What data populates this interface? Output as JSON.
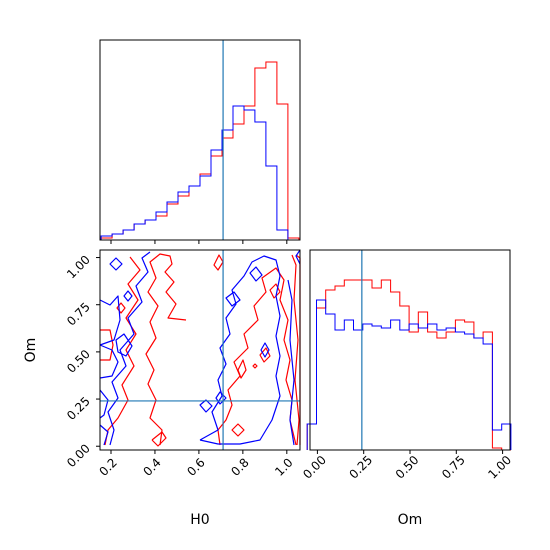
{
  "colors": {
    "series_a": "#ff0000",
    "series_b": "#0000ff",
    "truth": "#1f77b4",
    "axes": "#000000"
  },
  "chart_data": [
    {
      "type": "histogram",
      "panel": "H0 marginal",
      "x": [
        0.18,
        0.23,
        0.28,
        0.33,
        0.38,
        0.43,
        0.48,
        0.53,
        0.58,
        0.63,
        0.68,
        0.73,
        0.78,
        0.83,
        0.88,
        0.93,
        0.98,
        1.03
      ],
      "xlim": [
        0.15,
        1.06
      ],
      "ylim": [
        0,
        1.0
      ],
      "series": [
        {
          "values": [
            0.01,
            0.03,
            0.05,
            0.08,
            0.1,
            0.12,
            0.18,
            0.22,
            0.27,
            0.33,
            0.42,
            0.51,
            0.58,
            0.67,
            0.86,
            0.89,
            0.68,
            0.01
          ]
        },
        {
          "values": [
            0.02,
            0.03,
            0.05,
            0.08,
            0.1,
            0.14,
            0.19,
            0.24,
            0.27,
            0.32,
            0.45,
            0.55,
            0.67,
            0.65,
            0.59,
            0.37,
            0.05,
            0.0
          ]
        }
      ],
      "truth_x": 0.71,
      "xticks": [
        "0.2",
        "0.4",
        "0.6",
        "0.8",
        "1.0"
      ]
    },
    {
      "type": "contour",
      "panel": "H0 vs Om",
      "xlabel": "H0",
      "ylabel": "Om",
      "xlim": [
        0.15,
        1.06
      ],
      "ylim": [
        -0.02,
        1.04
      ],
      "xticks": [
        "0.2",
        "0.4",
        "0.6",
        "0.8",
        "1.0"
      ],
      "yticks": [
        "0.00",
        "0.25",
        "0.50",
        "0.75",
        "1.00"
      ],
      "truth": [
        0.71,
        0.24
      ]
    },
    {
      "type": "histogram",
      "panel": "Om marginal",
      "xlabel": "Om",
      "x": [
        -0.03,
        0.02,
        0.07,
        0.12,
        0.17,
        0.22,
        0.27,
        0.32,
        0.37,
        0.42,
        0.47,
        0.52,
        0.57,
        0.62,
        0.67,
        0.72,
        0.77,
        0.82,
        0.87,
        0.92,
        0.97,
        1.02
      ],
      "xlim": [
        -0.04,
        1.04
      ],
      "ylim": [
        0,
        1.0
      ],
      "series": [
        {
          "values": [
            0.13,
            0.71,
            0.8,
            0.82,
            0.85,
            0.85,
            0.85,
            0.81,
            0.85,
            0.79,
            0.72,
            0.59,
            0.69,
            0.59,
            0.56,
            0.59,
            0.65,
            0.64,
            0.56,
            0.59,
            0.01,
            0.0
          ]
        },
        {
          "values": [
            0.13,
            0.75,
            0.68,
            0.6,
            0.65,
            0.6,
            0.63,
            0.62,
            0.61,
            0.65,
            0.6,
            0.63,
            0.61,
            0.63,
            0.6,
            0.61,
            0.59,
            0.58,
            0.56,
            0.53,
            0.1,
            0.13
          ]
        }
      ],
      "truth_x": 0.24,
      "xticks": [
        "0.00",
        "0.25",
        "0.50",
        "0.75",
        "1.00"
      ]
    }
  ]
}
